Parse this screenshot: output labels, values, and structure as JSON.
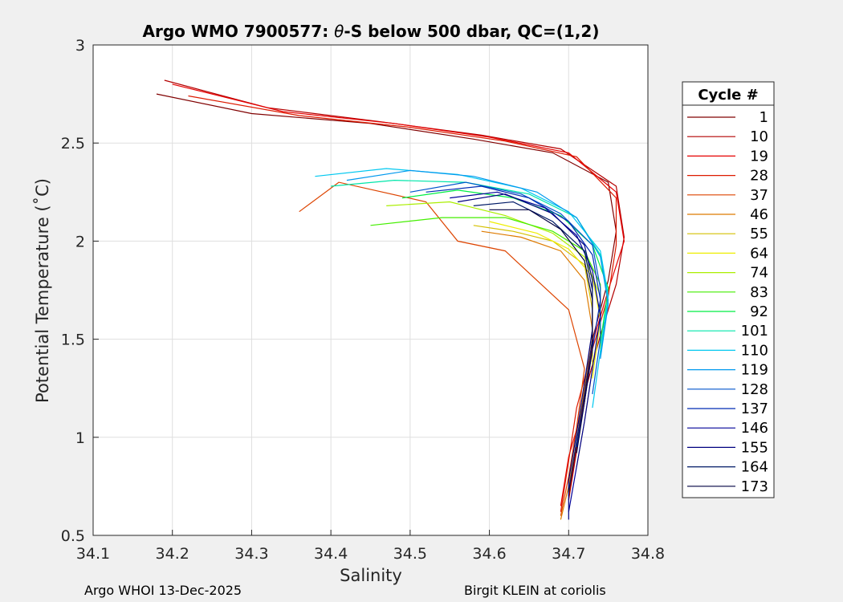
{
  "chart_data": {
    "type": "line",
    "title_prefix": "Argo WMO 7900577: ",
    "title_theta": "θ",
    "title_suffix": "-S below 500 dbar,  QC=(1,2)",
    "xlabel": "Salinity",
    "ylabel": "Potential Temperature (˚C)",
    "xlim": [
      34.1,
      34.8
    ],
    "ylim": [
      0.5,
      3
    ],
    "xticks": [
      "34.1",
      "34.2",
      "34.3",
      "34.4",
      "34.5",
      "34.6",
      "34.7",
      "34.8"
    ],
    "yticks": [
      "0.5",
      "1",
      "1.5",
      "2",
      "2.5",
      "3"
    ],
    "grid": true,
    "legend_title": "Cycle #",
    "legend_position": "right, outside plot",
    "series": [
      {
        "name": "1",
        "color": "#800000",
        "points": [
          [
            34.18,
            2.75
          ],
          [
            34.3,
            2.65
          ],
          [
            34.45,
            2.6
          ],
          [
            34.58,
            2.52
          ],
          [
            34.68,
            2.45
          ],
          [
            34.75,
            2.3
          ],
          [
            34.76,
            2.05
          ],
          [
            34.75,
            1.8
          ],
          [
            34.73,
            1.5
          ],
          [
            34.72,
            1.2
          ],
          [
            34.71,
            0.95
          ],
          [
            34.7,
            0.7
          ]
        ]
      },
      {
        "name": "10",
        "color": "#b30000",
        "points": [
          [
            34.19,
            2.82
          ],
          [
            34.32,
            2.68
          ],
          [
            34.46,
            2.61
          ],
          [
            34.59,
            2.54
          ],
          [
            34.69,
            2.47
          ],
          [
            34.76,
            2.28
          ],
          [
            34.77,
            2.02
          ],
          [
            34.76,
            1.78
          ],
          [
            34.74,
            1.52
          ],
          [
            34.72,
            1.22
          ],
          [
            34.71,
            0.93
          ],
          [
            34.7,
            0.68
          ]
        ]
      },
      {
        "name": "19",
        "color": "#e60000",
        "points": [
          [
            34.2,
            2.8
          ],
          [
            34.34,
            2.66
          ],
          [
            34.48,
            2.6
          ],
          [
            34.6,
            2.53
          ],
          [
            34.7,
            2.45
          ],
          [
            34.76,
            2.25
          ],
          [
            34.77,
            2.0
          ],
          [
            34.75,
            1.75
          ],
          [
            34.73,
            1.48
          ],
          [
            34.72,
            1.18
          ],
          [
            34.7,
            0.9
          ],
          [
            34.69,
            0.65
          ]
        ]
      },
      {
        "name": "28",
        "color": "#dd1a00",
        "points": [
          [
            34.22,
            2.74
          ],
          [
            34.36,
            2.64
          ],
          [
            34.5,
            2.58
          ],
          [
            34.62,
            2.51
          ],
          [
            34.71,
            2.43
          ],
          [
            34.76,
            2.22
          ],
          [
            34.76,
            1.98
          ],
          [
            34.75,
            1.72
          ],
          [
            34.73,
            1.45
          ],
          [
            34.71,
            1.15
          ],
          [
            34.7,
            0.88
          ],
          [
            34.69,
            0.62
          ]
        ]
      },
      {
        "name": "37",
        "color": "#dd4400",
        "points": [
          [
            34.36,
            2.15
          ],
          [
            34.41,
            2.3
          ],
          [
            34.52,
            2.2
          ],
          [
            34.56,
            2.0
          ],
          [
            34.62,
            1.95
          ],
          [
            34.66,
            1.8
          ],
          [
            34.7,
            1.65
          ],
          [
            34.72,
            1.35
          ],
          [
            34.71,
            1.05
          ],
          [
            34.7,
            0.8
          ],
          [
            34.69,
            0.6
          ]
        ]
      },
      {
        "name": "46",
        "color": "#dd7a00",
        "points": [
          [
            34.59,
            2.05
          ],
          [
            34.64,
            2.02
          ],
          [
            34.69,
            1.95
          ],
          [
            34.72,
            1.8
          ],
          [
            34.73,
            1.55
          ],
          [
            34.72,
            1.25
          ],
          [
            34.71,
            0.98
          ],
          [
            34.7,
            0.75
          ],
          [
            34.69,
            0.58
          ]
        ]
      },
      {
        "name": "55",
        "color": "#d4c000",
        "points": [
          [
            34.58,
            2.08
          ],
          [
            34.63,
            2.05
          ],
          [
            34.68,
            2.0
          ],
          [
            34.72,
            1.88
          ],
          [
            34.73,
            1.65
          ],
          [
            34.73,
            1.35
          ],
          [
            34.72,
            1.08
          ],
          [
            34.71,
            0.85
          ]
        ]
      },
      {
        "name": "64",
        "color": "#eeee00",
        "points": [
          [
            34.6,
            2.1
          ],
          [
            34.66,
            2.04
          ],
          [
            34.7,
            1.96
          ],
          [
            34.73,
            1.82
          ],
          [
            34.74,
            1.6
          ],
          [
            34.73,
            1.3
          ]
        ]
      },
      {
        "name": "74",
        "color": "#aaee00",
        "points": [
          [
            34.47,
            2.18
          ],
          [
            34.55,
            2.2
          ],
          [
            34.62,
            2.13
          ],
          [
            34.68,
            2.04
          ],
          [
            34.72,
            1.92
          ],
          [
            34.74,
            1.72
          ],
          [
            34.74,
            1.45
          ]
        ]
      },
      {
        "name": "83",
        "color": "#44ee00",
        "points": [
          [
            34.45,
            2.08
          ],
          [
            34.54,
            2.12
          ],
          [
            34.62,
            2.12
          ],
          [
            34.68,
            2.05
          ],
          [
            34.72,
            1.95
          ],
          [
            34.74,
            1.78
          ],
          [
            34.74,
            1.52
          ]
        ]
      },
      {
        "name": "92",
        "color": "#00ee44",
        "points": [
          [
            34.49,
            2.22
          ],
          [
            34.56,
            2.26
          ],
          [
            34.63,
            2.22
          ],
          [
            34.69,
            2.13
          ],
          [
            34.73,
            1.98
          ],
          [
            34.75,
            1.76
          ],
          [
            34.74,
            1.48
          ]
        ]
      },
      {
        "name": "101",
        "color": "#00e6aa",
        "points": [
          [
            34.4,
            2.28
          ],
          [
            34.48,
            2.31
          ],
          [
            34.57,
            2.3
          ],
          [
            34.65,
            2.24
          ],
          [
            34.71,
            2.12
          ],
          [
            34.74,
            1.93
          ],
          [
            34.75,
            1.7
          ],
          [
            34.74,
            1.42
          ]
        ]
      },
      {
        "name": "110",
        "color": "#00c8f0",
        "points": [
          [
            34.38,
            2.33
          ],
          [
            34.47,
            2.37
          ],
          [
            34.56,
            2.34
          ],
          [
            34.64,
            2.27
          ],
          [
            34.7,
            2.15
          ],
          [
            34.74,
            1.95
          ],
          [
            34.75,
            1.72
          ],
          [
            34.74,
            1.44
          ],
          [
            34.73,
            1.15
          ]
        ]
      },
      {
        "name": "119",
        "color": "#0099ee",
        "points": [
          [
            34.42,
            2.31
          ],
          [
            34.5,
            2.36
          ],
          [
            34.58,
            2.33
          ],
          [
            34.66,
            2.25
          ],
          [
            34.71,
            2.12
          ],
          [
            34.74,
            1.92
          ],
          [
            34.75,
            1.68
          ],
          [
            34.74,
            1.4
          ]
        ]
      },
      {
        "name": "128",
        "color": "#0055cc",
        "points": [
          [
            34.5,
            2.25
          ],
          [
            34.57,
            2.3
          ],
          [
            34.64,
            2.24
          ],
          [
            34.69,
            2.14
          ],
          [
            34.73,
            1.98
          ],
          [
            34.74,
            1.76
          ],
          [
            34.74,
            1.5
          ],
          [
            34.73,
            1.22
          ]
        ]
      },
      {
        "name": "137",
        "color": "#002bb3",
        "points": [
          [
            34.52,
            2.25
          ],
          [
            34.59,
            2.28
          ],
          [
            34.65,
            2.22
          ],
          [
            34.7,
            2.1
          ],
          [
            34.73,
            1.93
          ],
          [
            34.74,
            1.7
          ],
          [
            34.73,
            1.45
          ],
          [
            34.72,
            1.18
          ],
          [
            34.71,
            0.95
          ]
        ]
      },
      {
        "name": "146",
        "color": "#000099",
        "points": [
          [
            34.55,
            2.22
          ],
          [
            34.61,
            2.25
          ],
          [
            34.67,
            2.17
          ],
          [
            34.71,
            2.03
          ],
          [
            34.73,
            1.85
          ],
          [
            34.74,
            1.62
          ],
          [
            34.73,
            1.35
          ],
          [
            34.72,
            1.08
          ],
          [
            34.71,
            0.85
          ],
          [
            34.7,
            0.62
          ]
        ]
      },
      {
        "name": "155",
        "color": "#000080",
        "points": [
          [
            34.56,
            2.2
          ],
          [
            34.62,
            2.24
          ],
          [
            34.68,
            2.14
          ],
          [
            34.72,
            1.98
          ],
          [
            34.73,
            1.8
          ],
          [
            34.73,
            1.55
          ],
          [
            34.72,
            1.28
          ],
          [
            34.71,
            1.02
          ],
          [
            34.7,
            0.78
          ],
          [
            34.7,
            0.58
          ]
        ]
      },
      {
        "name": "164",
        "color": "#001a66",
        "points": [
          [
            34.58,
            2.18
          ],
          [
            34.63,
            2.2
          ],
          [
            34.68,
            2.1
          ],
          [
            34.72,
            1.95
          ],
          [
            34.73,
            1.75
          ],
          [
            34.73,
            1.5
          ],
          [
            34.72,
            1.22
          ],
          [
            34.71,
            0.98
          ],
          [
            34.7,
            0.72
          ]
        ]
      },
      {
        "name": "173",
        "color": "#000040",
        "points": [
          [
            34.6,
            2.16
          ],
          [
            34.65,
            2.16
          ],
          [
            34.69,
            2.06
          ],
          [
            34.72,
            1.9
          ],
          [
            34.73,
            1.7
          ],
          [
            34.73,
            1.45
          ],
          [
            34.72,
            1.18
          ],
          [
            34.71,
            0.92
          ]
        ]
      }
    ]
  },
  "footer": {
    "left": "Argo WHOI 13-Dec-2025",
    "right": "Birgit KLEIN at coriolis"
  }
}
